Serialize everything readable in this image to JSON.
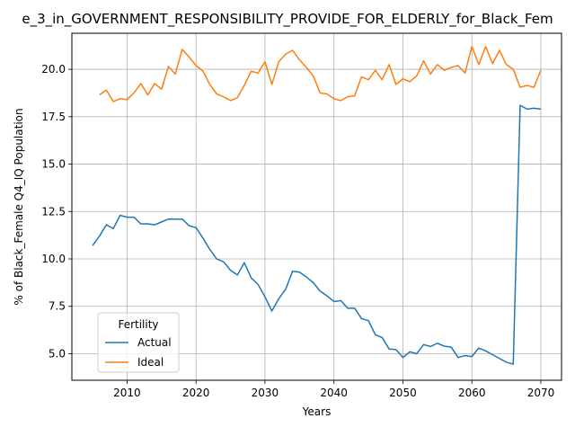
{
  "chart_data": {
    "type": "line",
    "title": "e_3_in_GOVERNMENT_RESPONSIBILITY_PROVIDE_FOR_ELDERLY_for_Black_Fem",
    "xlabel": "Years",
    "ylabel": "% of Black_Female Q4_IQ Population",
    "xlim": [
      2002,
      2073
    ],
    "ylim": [
      3.6,
      21.9
    ],
    "x_ticks": [
      2010,
      2020,
      2030,
      2040,
      2050,
      2060,
      2070
    ],
    "y_ticks": [
      5.0,
      7.5,
      10.0,
      12.5,
      15.0,
      17.5,
      20.0
    ],
    "x_tick_labels": [
      "2010",
      "2020",
      "2030",
      "2040",
      "2050",
      "2060",
      "2070"
    ],
    "y_tick_labels": [
      "5.0",
      "7.5",
      "10.0",
      "12.5",
      "15.0",
      "17.5",
      "20.0"
    ],
    "grid": true,
    "legend": {
      "title": "Fertility",
      "position": "lower-left"
    },
    "series": [
      {
        "name": "Actual",
        "color": "#1f77b4",
        "x": [
          2005,
          2006,
          2007,
          2008,
          2009,
          2010,
          2011,
          2012,
          2013,
          2014,
          2015,
          2016,
          2017,
          2018,
          2019,
          2020,
          2021,
          2022,
          2023,
          2024,
          2025,
          2026,
          2027,
          2028,
          2029,
          2030,
          2031,
          2032,
          2033,
          2034,
          2035,
          2036,
          2037,
          2038,
          2039,
          2040,
          2041,
          2042,
          2043,
          2044,
          2045,
          2046,
          2047,
          2048,
          2049,
          2050,
          2051,
          2052,
          2053,
          2054,
          2055,
          2056,
          2057,
          2058,
          2059,
          2060,
          2061,
          2062,
          2063,
          2064,
          2065,
          2066,
          2067,
          2068,
          2069,
          2070
        ],
        "values": [
          10.7,
          11.2,
          11.8,
          11.6,
          12.3,
          12.2,
          12.2,
          11.85,
          11.85,
          11.8,
          11.95,
          12.1,
          12.1,
          12.1,
          11.75,
          11.65,
          11.1,
          10.5,
          10.0,
          9.85,
          9.4,
          9.15,
          9.8,
          9.0,
          8.65,
          8.0,
          7.25,
          7.9,
          8.4,
          9.35,
          9.3,
          9.05,
          8.75,
          8.3,
          8.05,
          7.75,
          7.8,
          7.4,
          7.4,
          6.85,
          6.75,
          6.0,
          5.85,
          5.25,
          5.22,
          4.8,
          5.1,
          5.0,
          5.48,
          5.38,
          5.55,
          5.4,
          5.35,
          4.8,
          4.9,
          4.85,
          5.3,
          5.15,
          4.95,
          4.75,
          4.55,
          4.45,
          18.1,
          17.9,
          17.95,
          17.9
        ]
      },
      {
        "name": "Ideal",
        "color": "#ff7f0e",
        "x": [
          2006,
          2007,
          2008,
          2009,
          2010,
          2011,
          2012,
          2013,
          2014,
          2015,
          2016,
          2017,
          2018,
          2019,
          2020,
          2021,
          2022,
          2023,
          2024,
          2025,
          2026,
          2027,
          2028,
          2029,
          2030,
          2031,
          2032,
          2033,
          2034,
          2035,
          2036,
          2037,
          2038,
          2039,
          2040,
          2041,
          2042,
          2043,
          2044,
          2045,
          2046,
          2047,
          2048,
          2049,
          2050,
          2051,
          2052,
          2053,
          2054,
          2055,
          2056,
          2057,
          2058,
          2059,
          2060,
          2061,
          2062,
          2063,
          2064,
          2065,
          2066,
          2067,
          2068,
          2069,
          2070
        ],
        "values": [
          18.65,
          18.9,
          18.3,
          18.45,
          18.4,
          18.75,
          19.25,
          18.65,
          19.25,
          18.95,
          20.15,
          19.75,
          21.05,
          20.65,
          20.2,
          19.9,
          19.2,
          18.7,
          18.55,
          18.35,
          18.5,
          19.15,
          19.9,
          19.8,
          20.4,
          19.2,
          20.4,
          20.8,
          21.0,
          20.5,
          20.1,
          19.65,
          18.75,
          18.7,
          18.45,
          18.35,
          18.55,
          18.6,
          19.6,
          19.45,
          19.95,
          19.45,
          20.25,
          19.2,
          19.5,
          19.35,
          19.65,
          20.45,
          19.75,
          20.25,
          19.95,
          20.1,
          20.2,
          19.8,
          21.2,
          20.25,
          21.2,
          20.3,
          21.0,
          20.25,
          20.0,
          19.05,
          19.15,
          19.05,
          19.95
        ]
      }
    ]
  }
}
